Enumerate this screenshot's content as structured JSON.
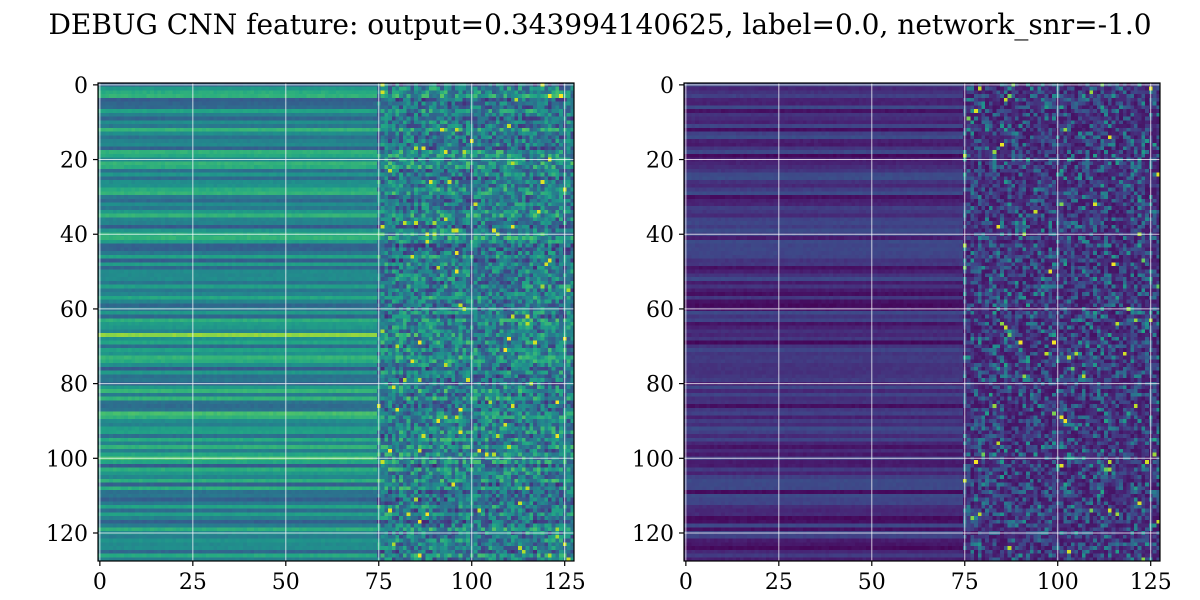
{
  "chart_data": {
    "type": "heatmap",
    "title": "DEBUG CNN feature: output=0.343994140625, label=0.0, network_snr=-1.0",
    "colormap": "viridis",
    "grid": true,
    "panels": [
      {
        "name": "",
        "xlim": [
          0,
          127
        ],
        "ylim": [
          0,
          127
        ],
        "x_ticks": [
          0,
          25,
          50,
          75,
          100,
          125
        ],
        "y_ticks": [
          0,
          20,
          40,
          60,
          80,
          100,
          120
        ],
        "rows": 128,
        "cols": 128,
        "value_range": [
          0,
          1
        ],
        "pattern": "horizontal bands (mid-teal) for columns 0-74, noisy speckled values for columns 75-127"
      },
      {
        "name": "",
        "xlim": [
          0,
          127
        ],
        "ylim": [
          0,
          127
        ],
        "x_ticks": [
          0,
          25,
          50,
          75,
          100,
          125
        ],
        "y_ticks": [
          0,
          20,
          40,
          60,
          80,
          100,
          120
        ],
        "rows": 128,
        "cols": 128,
        "value_range": [
          0,
          1
        ],
        "pattern": "dark purple horizontal bands for columns 0-74, sparse bright speckles for columns 75-127"
      }
    ]
  }
}
